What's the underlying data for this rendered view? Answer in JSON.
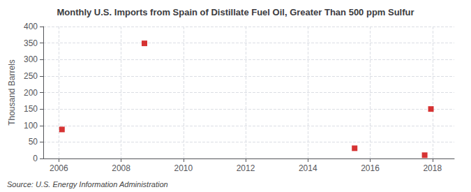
{
  "chart_data": {
    "type": "scatter",
    "title": "Monthly U.S. Imports from Spain of Distillate Fuel Oil, Greater Than 500 ppm Sulfur",
    "ylabel": "Thousand Barrels",
    "annotation": "Source: U.S. Energy Information Administration",
    "x": [
      2006.1,
      2008.75,
      2015.5,
      2017.75,
      2017.95
    ],
    "values": [
      88,
      349,
      31,
      10,
      150
    ],
    "color": "#cc0000",
    "marker": "square",
    "xlim": [
      2005.5,
      2018.7
    ],
    "ylim": [
      0,
      400
    ],
    "xticks": [
      2006,
      2008,
      2010,
      2012,
      2014,
      2016,
      2018
    ],
    "yticks": [
      0,
      50,
      100,
      150,
      200,
      250,
      300,
      350,
      400
    ],
    "grid": true
  }
}
